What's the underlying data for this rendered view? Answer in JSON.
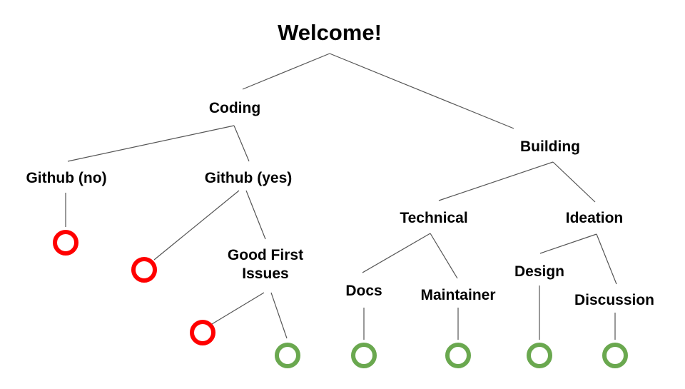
{
  "title": "Welcome!",
  "nodes": {
    "coding": "Coding",
    "building": "Building",
    "github_no": "Github (no)",
    "github_yes": "Github (yes)",
    "good_first_issues": "Good First Issues",
    "technical": "Technical",
    "ideation": "Ideation",
    "docs": "Docs",
    "maintainer": "Maintainer",
    "design": "Design",
    "discussion": "Discussion"
  },
  "colors": {
    "fail": "#ff0000",
    "success": "#6aa84f",
    "line": "#555555"
  },
  "outcomes": {
    "github_no": "fail-ring",
    "github_yes": "fail-ring",
    "good_first_issues_left": "fail-ring",
    "good_first_issues_right": "success-ring",
    "docs": "success-ring",
    "maintainer": "success-ring",
    "design": "success-ring",
    "discussion": "success-ring"
  }
}
